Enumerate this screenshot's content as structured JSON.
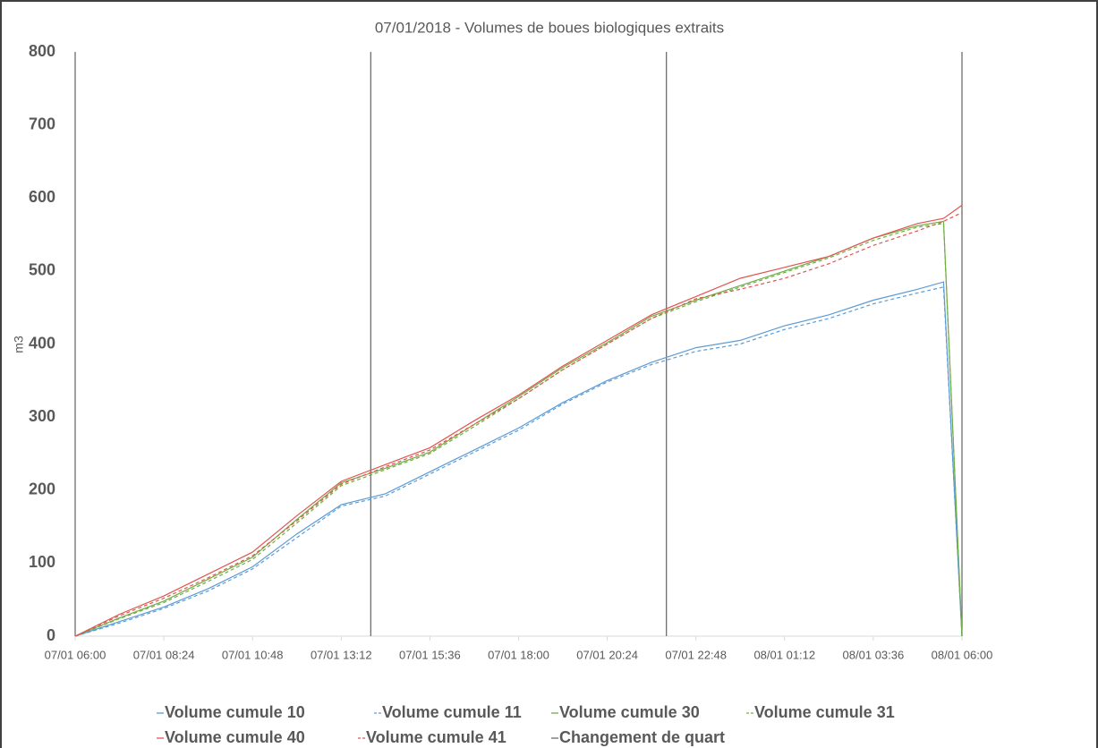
{
  "chart_data": {
    "type": "line",
    "title": "07/01/2018 - Volumes de boues biologiques extraits",
    "y_label": "m3",
    "x": [
      "07/01 06:00",
      "07/01 07:12",
      "07/01 08:24",
      "07/01 09:36",
      "07/01 10:48",
      "07/01 12:00",
      "07/01 13:12",
      "07/01 14:24",
      "07/01 15:36",
      "07/01 16:48",
      "07/01 18:00",
      "07/01 19:12",
      "07/01 20:24",
      "07/01 21:36",
      "07/01 22:48",
      "08/01 00:00",
      "08/01 01:12",
      "08/01 02:24",
      "08/01 03:36",
      "08/01 04:48",
      "08/01 05:30",
      "08/01 06:00"
    ],
    "xlim": [
      "07/01 06:00",
      "08/01 06:00"
    ],
    "xticks": [
      "07/01 06:00",
      "07/01 08:24",
      "07/01 10:48",
      "07/01 13:12",
      "07/01 15:36",
      "07/01 18:00",
      "07/01 20:24",
      "07/01 22:48",
      "08/01 01:12",
      "08/01 03:36",
      "08/01 06:00"
    ],
    "ylim": [
      0,
      800
    ],
    "yticks": [
      0,
      100,
      200,
      300,
      400,
      500,
      600,
      700,
      800
    ],
    "grid": false,
    "legend": "bottom",
    "series": [
      {
        "name": "Volume cumule 10",
        "color": "#5b9bd5",
        "dash": false,
        "values": [
          0,
          20,
          40,
          65,
          95,
          140,
          180,
          195,
          225,
          255,
          285,
          320,
          350,
          375,
          395,
          405,
          425,
          440,
          460,
          475,
          485,
          0
        ]
      },
      {
        "name": "Volume cumule 11",
        "color": "#5b9bd5",
        "dash": true,
        "values": [
          0,
          18,
          38,
          62,
          92,
          135,
          178,
          192,
          222,
          252,
          282,
          318,
          348,
          372,
          390,
          400,
          420,
          435,
          455,
          470,
          478,
          0
        ]
      },
      {
        "name": "Volume cumule 30",
        "color": "#70ad47",
        "dash": false,
        "values": [
          0,
          25,
          48,
          78,
          108,
          160,
          210,
          230,
          252,
          290,
          328,
          368,
          402,
          438,
          460,
          480,
          500,
          520,
          545,
          562,
          568,
          0
        ]
      },
      {
        "name": "Volume cumule 31",
        "color": "#70ad47",
        "dash": true,
        "values": [
          0,
          24,
          46,
          75,
          105,
          155,
          206,
          228,
          250,
          287,
          325,
          365,
          400,
          435,
          458,
          478,
          498,
          518,
          542,
          560,
          565,
          0
        ]
      },
      {
        "name": "Volume cumule 40",
        "color": "#e0554f",
        "dash": false,
        "values": [
          0,
          30,
          55,
          85,
          115,
          165,
          212,
          235,
          258,
          295,
          330,
          370,
          405,
          440,
          465,
          490,
          505,
          520,
          545,
          565,
          572,
          590
        ]
      },
      {
        "name": "Volume cumule 41",
        "color": "#e0554f",
        "dash": true,
        "values": [
          0,
          28,
          52,
          80,
          110,
          158,
          208,
          232,
          255,
          290,
          325,
          365,
          400,
          435,
          462,
          475,
          490,
          510,
          535,
          555,
          568,
          580
        ]
      }
    ],
    "shift_changes": {
      "name": "Changement de quart",
      "color": "#6e6e6e",
      "x": [
        "07/01 06:00",
        "07/01 14:00",
        "07/01 22:00",
        "08/01 06:00"
      ],
      "values": [
        800,
        800,
        800,
        800
      ]
    }
  }
}
